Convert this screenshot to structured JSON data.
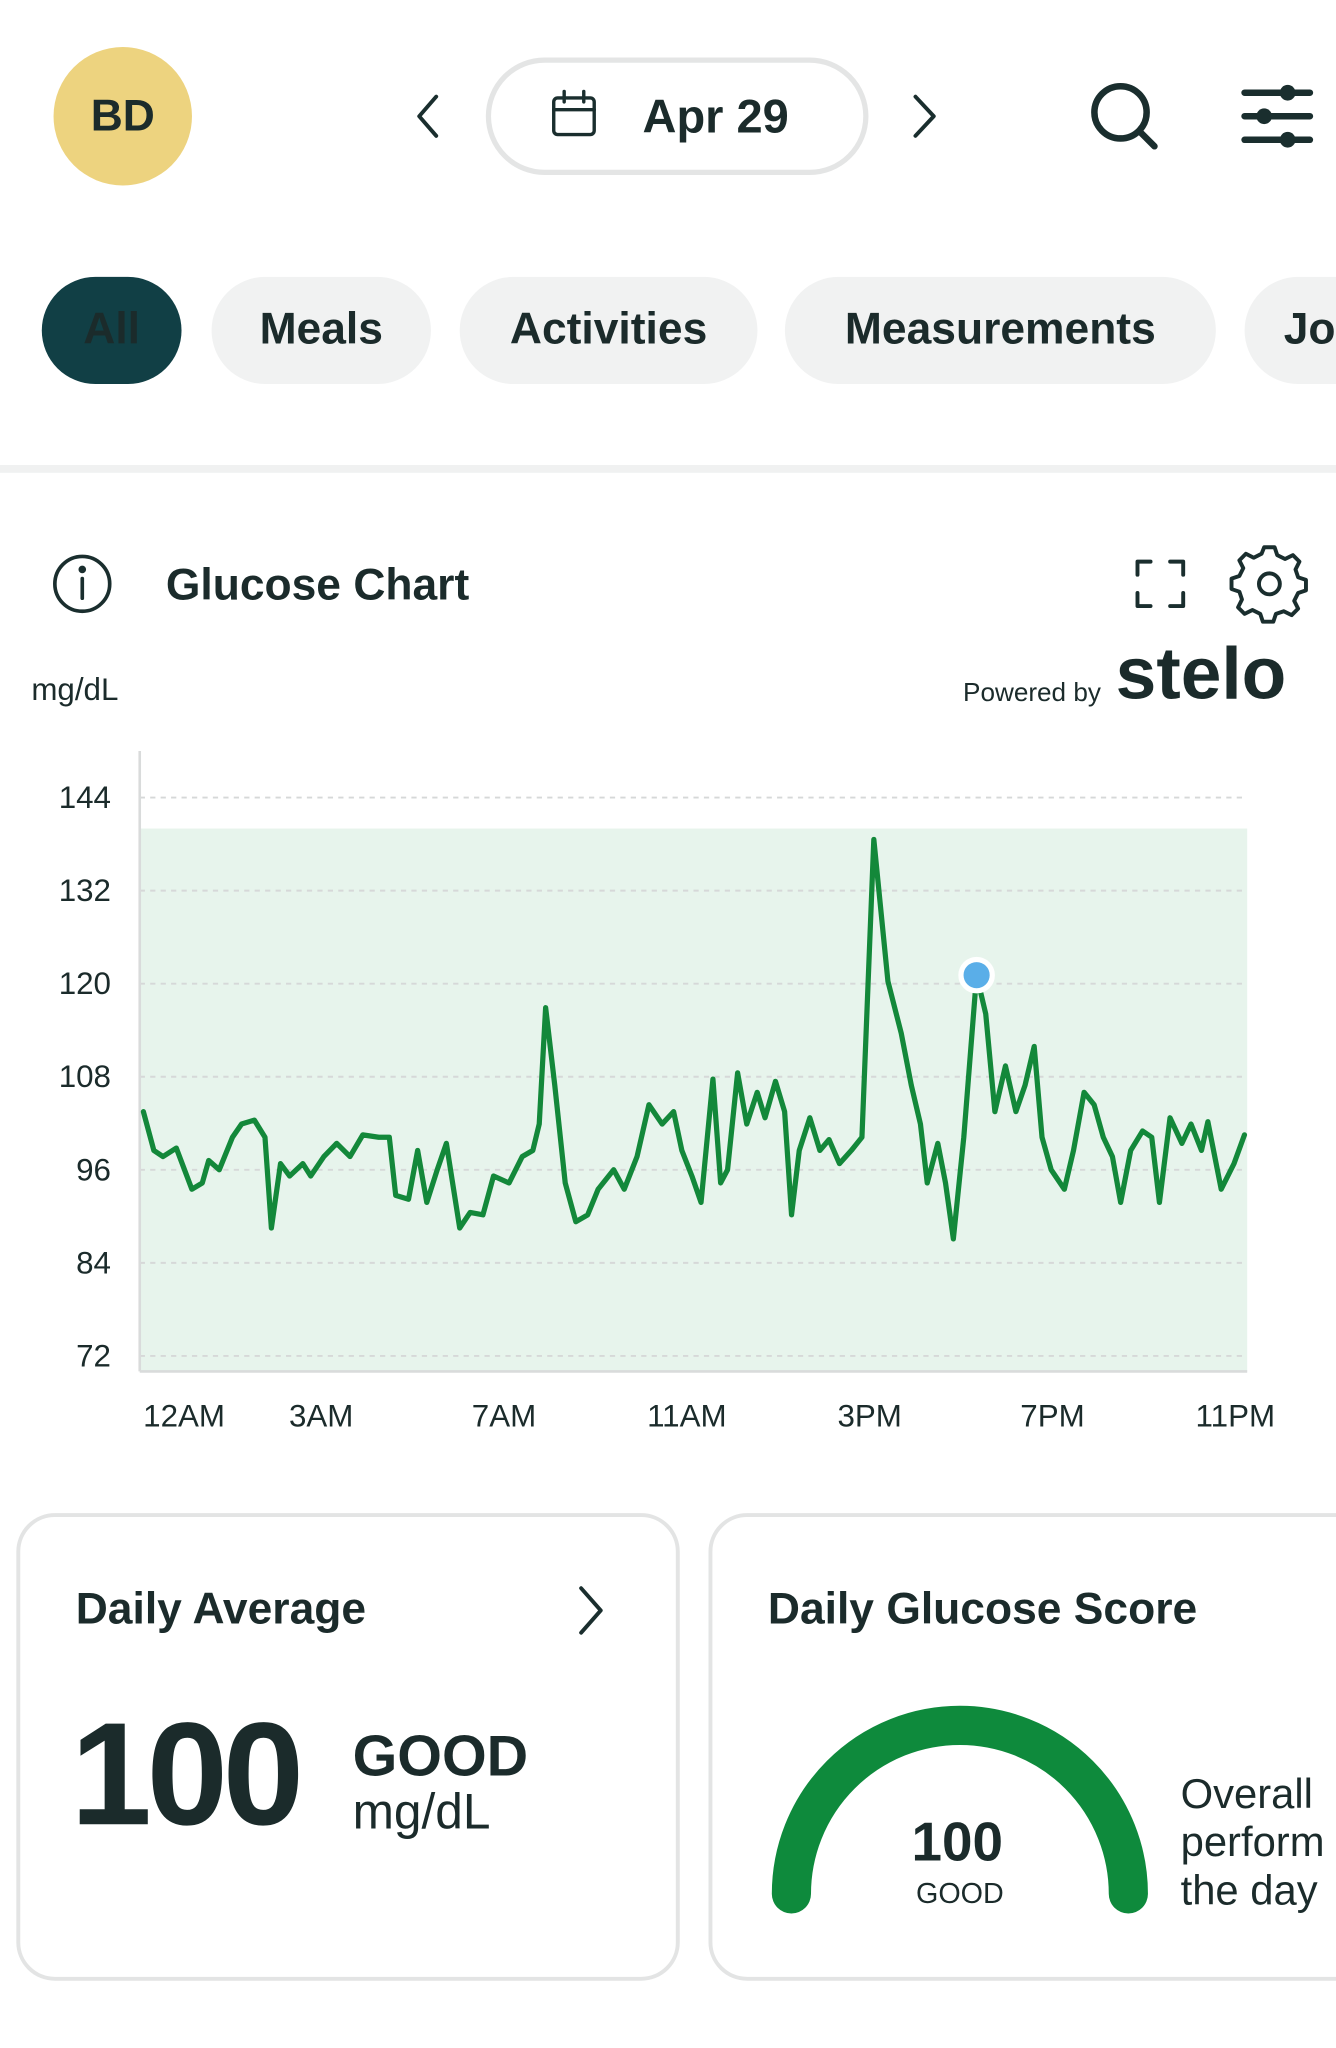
{
  "header": {
    "avatar": "BD",
    "date": "Apr 29"
  },
  "tabs": [
    "All",
    "Meals",
    "Activities",
    "Measurements",
    "Jo"
  ],
  "chart_section": {
    "title": "Glucose Chart",
    "unit": "mg/dL",
    "powered_by": "Powered by",
    "brand": "stelo"
  },
  "chart_data": {
    "type": "line",
    "color": "#13883a",
    "band_color": "#e7f4ec",
    "x": [
      -0.89,
      -0.66,
      -0.46,
      -0.17,
      0.17,
      0.4,
      0.54,
      0.77,
      1.06,
      1.26,
      1.54,
      1.77,
      1.91,
      2.11,
      2.31,
      2.6,
      2.77,
      3.06,
      3.34,
      3.63,
      3.91,
      4.26,
      4.49,
      4.63,
      4.91,
      5.11,
      5.31,
      5.54,
      5.74,
      6.03,
      6.26,
      6.54,
      6.77,
      7.11,
      7.4,
      7.63,
      7.77,
      7.91,
      8.11,
      8.34,
      8.57,
      8.83,
      9.06,
      9.4,
      9.63,
      9.91,
      10.17,
      10.46,
      10.71,
      10.89,
      11.11,
      11.31,
      11.57,
      11.74,
      11.89,
      12.11,
      12.31,
      12.54,
      12.71,
      12.94,
      13.14,
      13.29,
      13.46,
      13.69,
      13.91,
      14.11,
      14.34,
      14.6,
      14.83,
      15.09,
      15.4,
      15.69,
      15.91,
      16.11,
      16.26,
      16.49,
      16.66,
      16.83,
      17.06,
      17.34,
      17.54,
      17.74,
      17.97,
      18.2,
      18.4,
      18.6,
      18.77,
      18.97,
      19.26,
      19.46,
      19.69,
      19.91,
      20.11,
      20.31,
      20.49,
      20.71,
      20.97,
      21.17,
      21.34,
      21.57,
      21.83,
      22.03,
      22.26,
      22.4,
      22.69,
      22.97,
      23.2
    ],
    "values": [
      103.5,
      98.5,
      97.7,
      98.8,
      93.5,
      94.3,
      97.2,
      96,
      100.2,
      101.9,
      102.4,
      100.2,
      88.5,
      96.8,
      95.2,
      96.8,
      95.2,
      97.7,
      99.4,
      97.7,
      100.5,
      100.2,
      100.2,
      92.7,
      92.2,
      98.5,
      91.8,
      96,
      99.4,
      88.5,
      90.5,
      90.2,
      95.2,
      94.3,
      97.7,
      98.5,
      101.9,
      116.9,
      106.9,
      94.3,
      89.3,
      90.2,
      93.5,
      96,
      93.5,
      97.7,
      104.4,
      101.9,
      103.5,
      98.5,
      95.2,
      91.8,
      107.7,
      94.3,
      96,
      108.5,
      101.9,
      106,
      102.7,
      107.4,
      103.5,
      90.2,
      98.5,
      102.7,
      98.5,
      99.9,
      96.8,
      98.5,
      100.2,
      138.6,
      120.3,
      113.6,
      106.9,
      101.9,
      94.3,
      99.4,
      94.3,
      87.1,
      100.2,
      121.1,
      116.1,
      103.5,
      109.4,
      103.5,
      106.9,
      111.9,
      100.2,
      96,
      93.5,
      98.5,
      106,
      104.4,
      100.2,
      97.7,
      91.8,
      98.5,
      101,
      100.2,
      91.8,
      102.7,
      99.4,
      101.9,
      98.5,
      102.2,
      93.5,
      96.8,
      100.5
    ],
    "highlight_index": 79,
    "highlight_color": "#5aaee8",
    "target_range": [
      70,
      140
    ],
    "xlim": [
      -0.97,
      23.26
    ],
    "xticks": [
      {
        "value": 0,
        "label": "12AM"
      },
      {
        "value": 3,
        "label": "3AM"
      },
      {
        "value": 7,
        "label": "7AM"
      },
      {
        "value": 11,
        "label": "11AM"
      },
      {
        "value": 15,
        "label": "3PM"
      },
      {
        "value": 19,
        "label": "7PM"
      },
      {
        "value": 23,
        "label": "11PM"
      }
    ],
    "ylim": [
      70,
      150
    ],
    "yticks": [
      72,
      84,
      96,
      108,
      120,
      132,
      144
    ],
    "grid": true
  },
  "daily_average": {
    "title": "Daily Average",
    "value": 100,
    "rating": "GOOD",
    "unit": "mg/dL"
  },
  "daily_score": {
    "title": "Daily Glucose Score",
    "value": 100,
    "rating": "GOOD",
    "description": [
      "Overall",
      "perform",
      "the day"
    ]
  }
}
